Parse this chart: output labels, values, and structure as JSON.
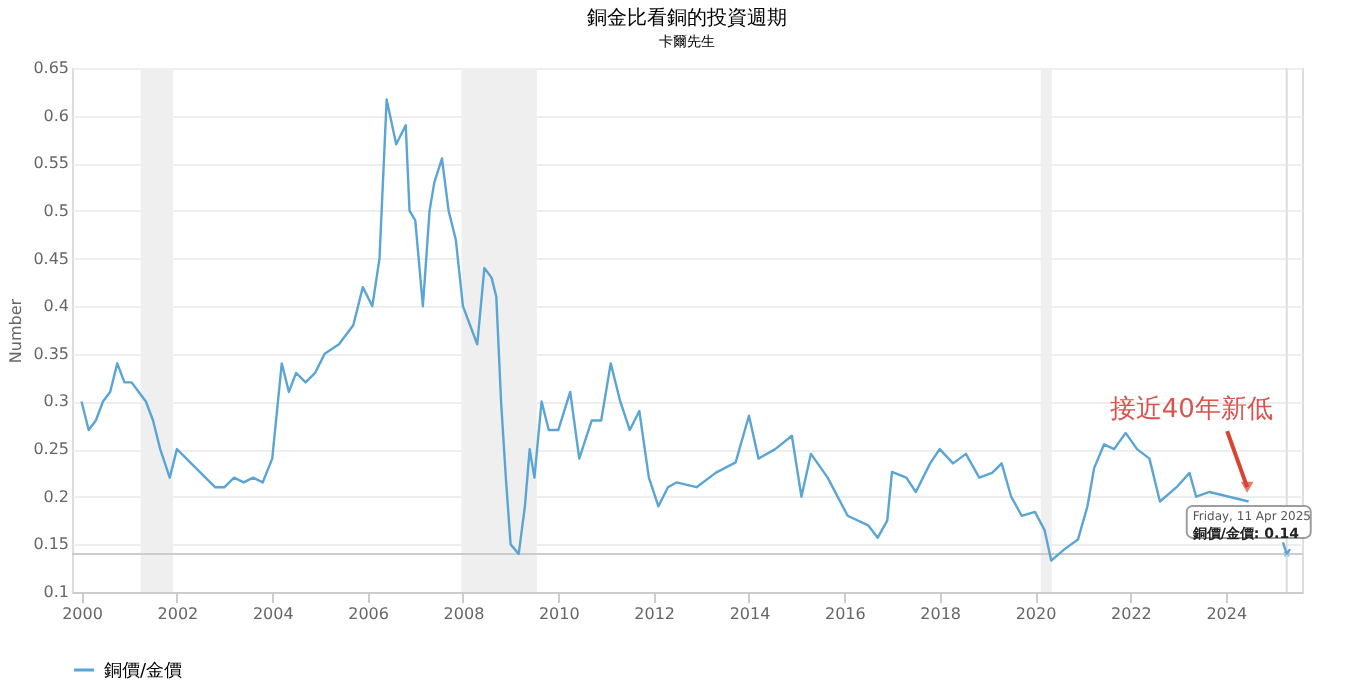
{
  "chart_data": {
    "type": "line",
    "title": "銅金比看銅的投資週期",
    "subtitle": "卡爾先生",
    "ylabel": "Number",
    "x": [
      2000.0,
      2000.15,
      2000.3,
      2000.45,
      2000.6,
      2000.75,
      2000.9,
      2001.05,
      2001.2,
      2001.35,
      2001.5,
      2001.65,
      2001.85,
      2002.0,
      2002.2,
      2002.4,
      2002.6,
      2002.8,
      2003.0,
      2003.2,
      2003.4,
      2003.6,
      2003.8,
      2004.0,
      2004.2,
      2004.35,
      2004.5,
      2004.7,
      2004.9,
      2005.1,
      2005.4,
      2005.7,
      2005.9,
      2006.1,
      2006.25,
      2006.4,
      2006.6,
      2006.8,
      2006.88,
      2007.0,
      2007.16,
      2007.3,
      2007.4,
      2007.56,
      2007.7,
      2007.85,
      2008.0,
      2008.15,
      2008.3,
      2008.45,
      2008.6,
      2008.7,
      2008.8,
      2008.9,
      2009.0,
      2009.17,
      2009.3,
      2009.4,
      2009.5,
      2009.65,
      2009.8,
      2010.0,
      2010.25,
      2010.44,
      2010.7,
      2010.9,
      2011.1,
      2011.3,
      2011.5,
      2011.7,
      2011.9,
      2012.1,
      2012.3,
      2012.48,
      2012.9,
      2013.3,
      2013.72,
      2014.0,
      2014.2,
      2014.55,
      2014.9,
      2015.1,
      2015.3,
      2015.65,
      2016.07,
      2016.5,
      2016.7,
      2016.9,
      2017.0,
      2017.3,
      2017.5,
      2017.8,
      2018.0,
      2018.28,
      2018.55,
      2018.83,
      2019.1,
      2019.3,
      2019.5,
      2019.72,
      2020.0,
      2020.2,
      2020.34,
      2020.62,
      2020.9,
      2021.1,
      2021.24,
      2021.45,
      2021.66,
      2021.9,
      2022.14,
      2022.4,
      2022.62,
      2022.97,
      2023.24,
      2023.38,
      2023.66,
      2024.07,
      2024.48,
      2024.8,
      2025.0,
      2025.2,
      2025.28,
      2025.35
    ],
    "series": [
      {
        "name": "銅價/金價",
        "color": "#5aa5d4",
        "values": [
          0.3,
          0.27,
          0.28,
          0.3,
          0.31,
          0.34,
          0.32,
          0.32,
          0.31,
          0.3,
          0.28,
          0.25,
          0.22,
          0.25,
          0.24,
          0.23,
          0.22,
          0.21,
          0.21,
          0.22,
          0.215,
          0.22,
          0.215,
          0.24,
          0.34,
          0.31,
          0.33,
          0.32,
          0.33,
          0.35,
          0.36,
          0.38,
          0.42,
          0.4,
          0.45,
          0.617,
          0.57,
          0.59,
          0.5,
          0.49,
          0.4,
          0.5,
          0.53,
          0.555,
          0.5,
          0.47,
          0.4,
          0.38,
          0.36,
          0.44,
          0.43,
          0.41,
          0.3,
          0.22,
          0.15,
          0.14,
          0.19,
          0.25,
          0.22,
          0.3,
          0.27,
          0.27,
          0.31,
          0.24,
          0.28,
          0.28,
          0.34,
          0.3,
          0.27,
          0.29,
          0.22,
          0.19,
          0.21,
          0.215,
          0.21,
          0.225,
          0.236,
          0.285,
          0.24,
          0.25,
          0.264,
          0.2,
          0.245,
          0.22,
          0.18,
          0.17,
          0.157,
          0.175,
          0.226,
          0.22,
          0.205,
          0.235,
          0.25,
          0.235,
          0.245,
          0.22,
          0.225,
          0.235,
          0.2,
          0.18,
          0.184,
          0.165,
          0.133,
          0.145,
          0.155,
          0.19,
          0.23,
          0.255,
          0.25,
          0.267,
          0.25,
          0.24,
          0.195,
          0.21,
          0.225,
          0.2,
          0.205,
          0.2,
          0.195,
          null,
          null,
          0.152,
          0.14,
          0.145
        ]
      }
    ],
    "xlim": [
      1999.8,
      2025.6
    ],
    "xticks": [
      2000,
      2002,
      2004,
      2006,
      2008,
      2010,
      2012,
      2014,
      2016,
      2018,
      2020,
      2022,
      2024
    ],
    "ylim": [
      0.1,
      0.65
    ],
    "yticks": [
      0.1,
      0.15,
      0.2,
      0.25,
      0.3,
      0.35,
      0.4,
      0.45,
      0.5,
      0.55,
      0.6,
      0.65
    ],
    "grid": "y",
    "legend": "bottom",
    "ref_lines": [
      {
        "axis": "y",
        "value": 0.14,
        "color": "#cccccc"
      },
      {
        "axis": "x",
        "value": 2025.28,
        "color": "#dddddd"
      }
    ],
    "bands": [
      {
        "axis": "x",
        "from": 2001.24,
        "to": 2001.92,
        "color": "#efefef"
      },
      {
        "axis": "x",
        "from": 2007.97,
        "to": 2009.55,
        "color": "#efefef"
      },
      {
        "axis": "x",
        "from": 2020.12,
        "to": 2020.35,
        "color": "#efefef"
      }
    ],
    "annotations": [
      {
        "text": "接近40年新低",
        "x": 2024.45,
        "y": 0.21
      },
      "Friday, 11 Apr 2025",
      {
        "text": "銅價/金價: 0.14",
        "x": 2025.28,
        "y": 0.14
      }
    ]
  }
}
